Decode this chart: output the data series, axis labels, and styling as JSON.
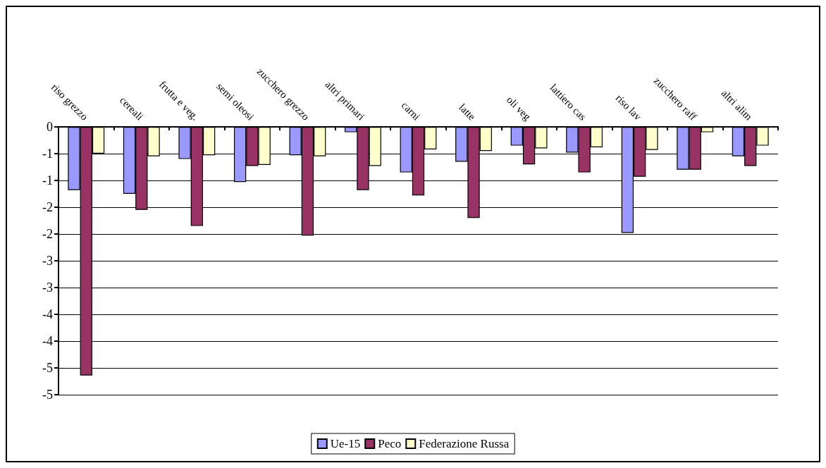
{
  "chart_data": {
    "type": "bar",
    "categories": [
      "riso grezzo",
      "cereali",
      "frutta e veg.",
      "semi oleosi",
      "zucchero grezzo",
      "altri primari",
      "carni",
      "latte",
      "oli veg",
      "lattiero cas",
      "riso lav",
      "zucchero raff",
      "altri alim"
    ],
    "series": [
      {
        "name": "Ue-15",
        "color": "#9999ff",
        "values": [
          -1.18,
          -1.25,
          -0.6,
          -1.03,
          -0.53,
          -0.1,
          -0.85,
          -0.65,
          -0.35,
          -0.48,
          -1.98,
          -0.8,
          -0.55
        ]
      },
      {
        "name": "Peco",
        "color": "#993366",
        "values": [
          -4.64,
          -1.55,
          -1.85,
          -0.73,
          -2.03,
          -1.18,
          -1.28,
          -1.7,
          -0.7,
          -0.85,
          -0.93,
          -0.8,
          -0.73
        ]
      },
      {
        "name": "Federazione Russa",
        "color": "#ffffcc",
        "values": [
          -0.5,
          -0.55,
          -0.53,
          -0.71,
          -0.55,
          -0.73,
          -0.42,
          -0.45,
          -0.4,
          -0.38,
          -0.43,
          -0.1,
          -0.35
        ]
      }
    ],
    "ylim": [
      -5,
      0
    ],
    "yticks": [
      0,
      {
        "value": -0.5,
        "label": "-1"
      },
      -1,
      {
        "value": -1.5,
        "label": "-2"
      },
      -2,
      {
        "value": -2.5,
        "label": "-3"
      },
      -3,
      {
        "value": -3.5,
        "label": "-4"
      },
      -4,
      {
        "value": -4.5,
        "label": "-5"
      },
      -5
    ],
    "grid": "y",
    "legend": "bottom"
  }
}
